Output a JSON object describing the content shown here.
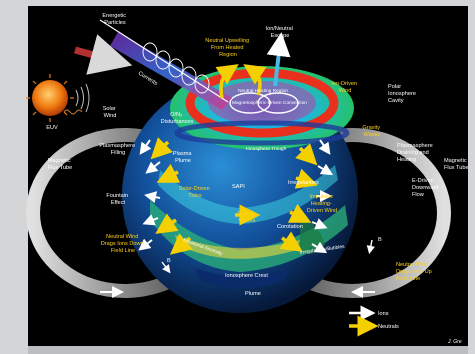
{
  "labels": {
    "energetic_particles": [
      "Energetic",
      "Particles"
    ],
    "currents": "Currents",
    "solar_wind": [
      "Solar",
      "Wind"
    ],
    "euv": "EUV",
    "o_n2_disturbances": [
      "O/N₂",
      "Disturbances"
    ],
    "neutral_upwelling": [
      "Neutral Upwelling",
      "From Heated",
      "Region"
    ],
    "ion_neutral_escape": [
      "Ion/Neutral",
      "Escape"
    ],
    "neutral_heating_region": "Neutral Heating Region",
    "magnetospheric_driven_convection": "Magnetospheric-Driven Convection",
    "ion_driven_wind": [
      "Ion-Driven",
      "Wind"
    ],
    "polar_ionosphere_cavity": [
      "Polar",
      "Ionosphere",
      "Cavity"
    ],
    "gravity_waves_top": [
      "Gravity",
      "Waves"
    ],
    "magnetic_flux_tube_left": [
      "Magnetic",
      "Flux Tube"
    ],
    "plasmasphere_filling": [
      "Plasmasphere",
      "Filling"
    ],
    "plasma_plume": [
      "Plasma",
      "Plume"
    ],
    "ionosphere_trough": "Ionosphere Trough",
    "plasmasphere_draining": [
      "Plasmasphere",
      "Draining and",
      "Heating"
    ],
    "magnetic_flux_tube_right": [
      "Magnetic",
      "Flux Tube"
    ],
    "fountain_effect": [
      "Fountain",
      "Effect"
    ],
    "solar_driven_tides": [
      "Solar-Driven",
      "Tides"
    ],
    "sapi": "SAPI",
    "irregularities": "Irregularities",
    "impulsive_heating": [
      "Impulsive",
      "Heating-",
      "Driven Wind"
    ],
    "e_driven_downward_flow": [
      "E-Driven",
      "Downward",
      "Flow"
    ],
    "gravity_waves_mid": [
      "Gravity",
      "Waves"
    ],
    "corotation": "Corotation",
    "equatorial_anomaly": "Equatorial Anomaly",
    "irregularities_bubbles": "Irregularities/Bubbles",
    "neutral_wind_left": [
      "Neutral Wind",
      "Drags Ions Down",
      "Field Line"
    ],
    "neutral_wind_right": [
      "Neutral Wind",
      "Drags Ions Up",
      "Field Line"
    ],
    "ionosphere_crest": "Ionosphere Crest",
    "plume": "Plume",
    "b_left": "B",
    "b_right": "B"
  },
  "legend": {
    "ions": "Ions",
    "neutrals": "Neutrals"
  },
  "credit": "J. Gre",
  "colors": {
    "ions_arrow": "#ffffff",
    "neutrals_arrow": "#f5d000",
    "heating_ring": "#e8301c",
    "sun": "#f07a10"
  }
}
